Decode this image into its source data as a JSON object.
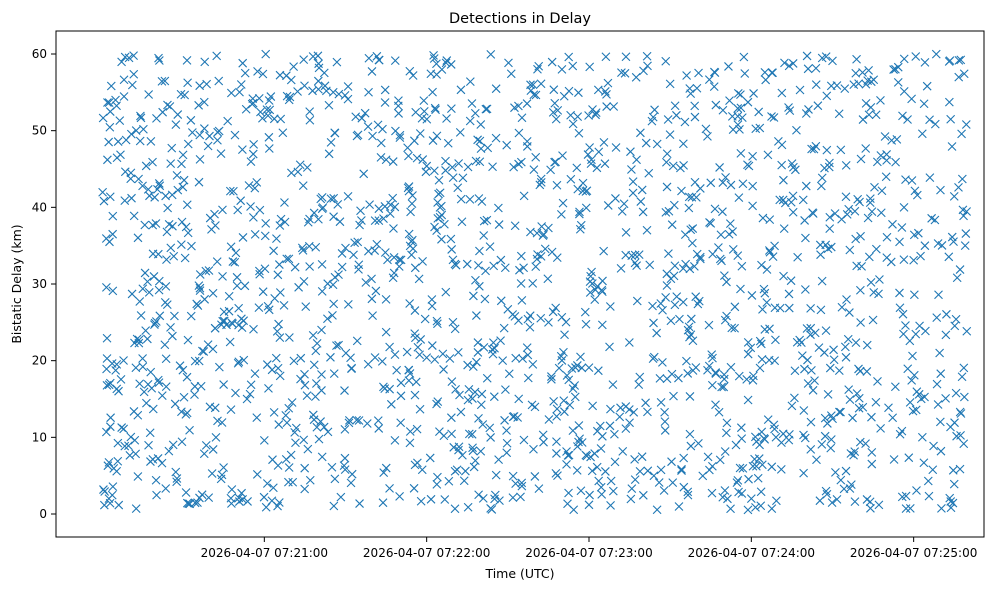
{
  "chart_data": {
    "type": "scatter",
    "title": "Detections in Delay",
    "xlabel": "Time (UTC)",
    "ylabel": "Bistatic Delay (km)",
    "marker": "x",
    "color": "#1f77b4",
    "grid": false,
    "xlim": [
      "2026-04-07 07:19:43",
      "2026-04-07 07:25:26"
    ],
    "ylim": [
      -3,
      63
    ],
    "xticks": [
      "2026-04-07 07:21:00",
      "2026-04-07 07:22:00",
      "2026-04-07 07:23:00",
      "2026-04-07 07:24:00",
      "2026-04-07 07:25:00"
    ],
    "yticks": [
      0,
      10,
      20,
      30,
      40,
      50,
      60
    ],
    "series": [
      {
        "x_range": [
          "2026-04-07 07:20:00",
          "2026-04-07 07:25:20"
        ],
        "y_range": [
          0.5,
          60
        ],
        "points": [
          [
            "2026-04-07 07:20:02",
            46.2
          ],
          [
            "2026-04-07 07:20:03",
            1.4
          ],
          [
            "2026-04-07 07:20:04",
            29.1
          ],
          [
            "2026-04-07 07:20:05",
            54.0
          ],
          [
            "2026-04-07 07:20:08",
            11.1
          ],
          [
            "2026-04-07 07:20:10",
            59.5
          ],
          [
            "2026-04-07 07:20:12",
            22.3
          ],
          [
            "2026-04-07 07:20:15",
            42.8
          ],
          [
            "2026-04-07 07:20:18",
            18.5
          ],
          [
            "2026-04-07 07:20:20",
            4.4
          ],
          [
            "2026-04-07 07:20:24",
            36.8
          ],
          [
            "2026-04-07 07:20:28",
            52.1
          ],
          [
            "2026-04-07 07:20:31",
            13.0
          ],
          [
            "2026-04-07 07:20:35",
            27.4
          ],
          [
            "2026-04-07 07:20:40",
            38.6
          ],
          [
            "2026-04-07 07:20:44",
            47.0
          ],
          [
            "2026-04-07 07:20:48",
            3.2
          ],
          [
            "2026-04-07 07:20:52",
            58.8
          ],
          [
            "2026-04-07 07:20:56",
            24.1
          ],
          [
            "2026-04-07 07:21:00",
            9.6
          ],
          [
            "2026-04-07 07:21:05",
            31.2
          ],
          [
            "2026-04-07 07:21:10",
            44.5
          ],
          [
            "2026-04-07 07:21:15",
            16.8
          ],
          [
            "2026-04-07 07:21:20",
            55.4
          ],
          [
            "2026-04-07 07:21:25",
            6.1
          ],
          [
            "2026-04-07 07:21:30",
            34.7
          ],
          [
            "2026-04-07 07:21:35",
            12.2
          ],
          [
            "2026-04-07 07:21:40",
            49.3
          ],
          [
            "2026-04-07 07:21:45",
            28.0
          ],
          [
            "2026-04-07 07:21:50",
            2.3
          ],
          [
            "2026-04-07 07:21:55",
            57.2
          ],
          [
            "2026-04-07 07:22:00",
            20.4
          ],
          [
            "2026-04-07 07:22:05",
            41.9
          ],
          [
            "2026-04-07 07:22:10",
            8.7
          ],
          [
            "2026-04-07 07:22:15",
            32.6
          ],
          [
            "2026-04-07 07:22:20",
            50.8
          ],
          [
            "2026-04-07 07:22:25",
            15.3
          ],
          [
            "2026-04-07 07:22:30",
            26.7
          ],
          [
            "2026-04-07 07:22:35",
            45.9
          ],
          [
            "2026-04-07 07:22:40",
            4.9
          ],
          [
            "2026-04-07 07:22:45",
            37.3
          ],
          [
            "2026-04-07 07:22:50",
            58.0
          ],
          [
            "2026-04-07 07:22:55",
            19.1
          ],
          [
            "2026-04-07 07:23:00",
            1.2
          ],
          [
            "2026-04-07 07:23:05",
            30.4
          ],
          [
            "2026-04-07 07:23:10",
            47.8
          ],
          [
            "2026-04-07 07:23:15",
            11.9
          ],
          [
            "2026-04-07 07:23:20",
            39.4
          ],
          [
            "2026-04-07 07:23:25",
            23.6
          ],
          [
            "2026-04-07 07:23:30",
            56.1
          ],
          [
            "2026-04-07 07:23:35",
            7.3
          ],
          [
            "2026-04-07 07:23:40",
            33.9
          ],
          [
            "2026-04-07 07:23:45",
            43.2
          ],
          [
            "2026-04-07 07:23:50",
            17.6
          ],
          [
            "2026-04-07 07:23:55",
            52.9
          ],
          [
            "2026-04-07 07:24:00",
            2.0
          ],
          [
            "2026-04-07 07:24:05",
            28.8
          ],
          [
            "2026-04-07 07:24:10",
            48.6
          ],
          [
            "2026-04-07 07:24:15",
            14.1
          ],
          [
            "2026-04-07 07:24:20",
            36.0
          ],
          [
            "2026-04-07 07:24:25",
            21.7
          ],
          [
            "2026-04-07 07:24:30",
            59.1
          ],
          [
            "2026-04-07 07:24:35",
            5.6
          ],
          [
            "2026-04-07 07:24:40",
            40.7
          ],
          [
            "2026-04-07 07:24:45",
            25.3
          ],
          [
            "2026-04-07 07:24:50",
            46.9
          ],
          [
            "2026-04-07 07:24:55",
            10.4
          ],
          [
            "2026-04-07 07:25:00",
            33.1
          ],
          [
            "2026-04-07 07:25:05",
            55.8
          ],
          [
            "2026-04-07 07:25:10",
            18.3
          ],
          [
            "2026-04-07 07:25:15",
            3.9
          ],
          [
            "2026-04-07 07:25:18",
            43.7
          ]
        ]
      }
    ]
  }
}
